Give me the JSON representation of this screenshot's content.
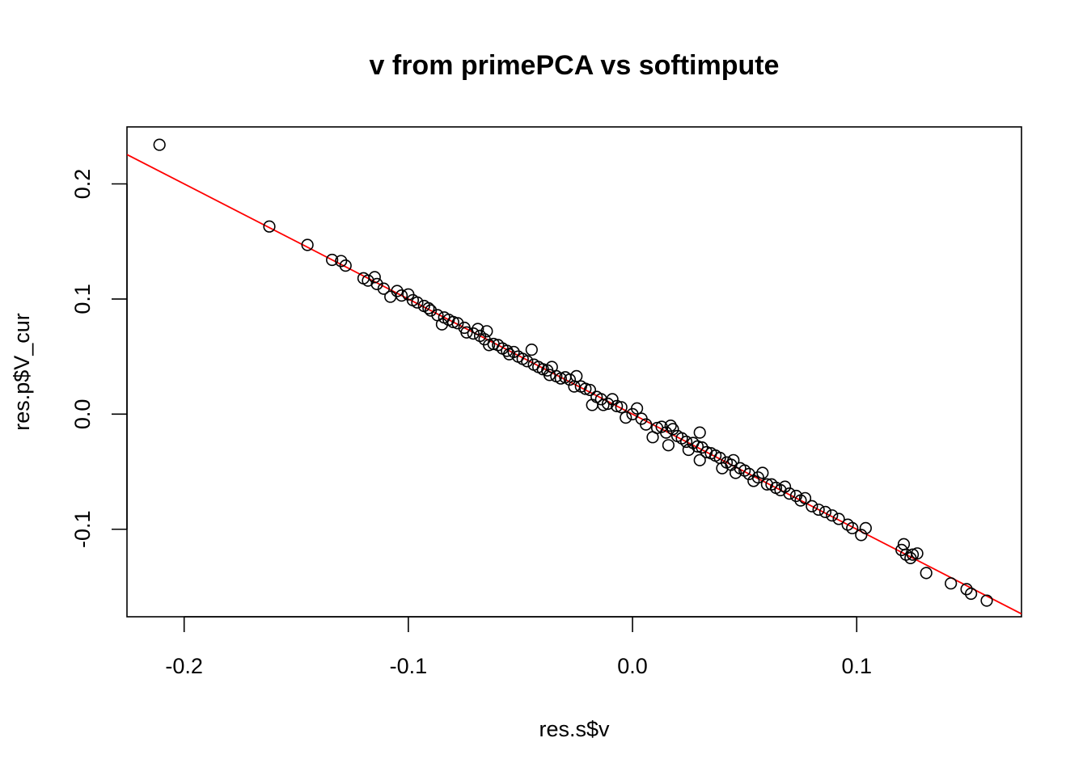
{
  "chart_data": {
    "type": "scatter",
    "title": "v from primePCA vs softimpute",
    "xlabel": "res.s$v",
    "ylabel": "res.p$V_cur",
    "xlim": [
      -0.2255,
      0.1735
    ],
    "ylim": [
      -0.176,
      0.2495
    ],
    "xticks": [
      -0.2,
      -0.1,
      0.0,
      0.1
    ],
    "xtick_labels": [
      "-0.2",
      "-0.1",
      "0.0",
      "0.1"
    ],
    "yticks": [
      -0.1,
      0.0,
      0.1,
      0.2
    ],
    "ytick_labels": [
      "-0.1",
      "0.0",
      "0.1",
      "0.2"
    ],
    "grid": false,
    "reference_line": {
      "intercept": 0.0,
      "slope": -1.0,
      "color": "#ff0000"
    },
    "point_color": "#000000",
    "points": [
      [
        -0.211,
        0.234
      ],
      [
        -0.162,
        0.163
      ],
      [
        -0.145,
        0.147
      ],
      [
        -0.134,
        0.134
      ],
      [
        -0.13,
        0.133
      ],
      [
        -0.128,
        0.129
      ],
      [
        -0.12,
        0.118
      ],
      [
        -0.118,
        0.116
      ],
      [
        -0.115,
        0.119
      ],
      [
        -0.114,
        0.113
      ],
      [
        -0.111,
        0.109
      ],
      [
        -0.108,
        0.102
      ],
      [
        -0.105,
        0.107
      ],
      [
        -0.103,
        0.103
      ],
      [
        -0.1,
        0.104
      ],
      [
        -0.098,
        0.099
      ],
      [
        -0.096,
        0.097
      ],
      [
        -0.093,
        0.094
      ],
      [
        -0.091,
        0.092
      ],
      [
        -0.09,
        0.09
      ],
      [
        -0.087,
        0.086
      ],
      [
        -0.085,
        0.078
      ],
      [
        -0.084,
        0.084
      ],
      [
        -0.082,
        0.082
      ],
      [
        -0.08,
        0.08
      ],
      [
        -0.078,
        0.079
      ],
      [
        -0.075,
        0.075
      ],
      [
        -0.074,
        0.071
      ],
      [
        -0.071,
        0.07
      ],
      [
        -0.069,
        0.074
      ],
      [
        -0.068,
        0.068
      ],
      [
        -0.066,
        0.065
      ],
      [
        -0.065,
        0.072
      ],
      [
        -0.064,
        0.06
      ],
      [
        -0.062,
        0.061
      ],
      [
        -0.06,
        0.06
      ],
      [
        -0.058,
        0.057
      ],
      [
        -0.056,
        0.055
      ],
      [
        -0.055,
        0.052
      ],
      [
        -0.053,
        0.054
      ],
      [
        -0.051,
        0.05
      ],
      [
        -0.049,
        0.048
      ],
      [
        -0.047,
        0.046
      ],
      [
        -0.045,
        0.056
      ],
      [
        -0.044,
        0.043
      ],
      [
        -0.042,
        0.041
      ],
      [
        -0.04,
        0.039
      ],
      [
        -0.038,
        0.038
      ],
      [
        -0.037,
        0.034
      ],
      [
        -0.036,
        0.041
      ],
      [
        -0.034,
        0.033
      ],
      [
        -0.032,
        0.031
      ],
      [
        -0.03,
        0.032
      ],
      [
        -0.028,
        0.03
      ],
      [
        -0.026,
        0.024
      ],
      [
        -0.025,
        0.033
      ],
      [
        -0.023,
        0.024
      ],
      [
        -0.021,
        0.022
      ],
      [
        -0.019,
        0.021
      ],
      [
        -0.018,
        0.008
      ],
      [
        -0.016,
        0.015
      ],
      [
        -0.014,
        0.013
      ],
      [
        -0.013,
        0.008
      ],
      [
        -0.011,
        0.009
      ],
      [
        -0.009,
        0.013
      ],
      [
        -0.007,
        0.007
      ],
      [
        -0.005,
        0.006
      ],
      [
        -0.003,
        -0.003
      ],
      [
        0.0,
        0.0
      ],
      [
        0.002,
        0.005
      ],
      [
        0.004,
        -0.004
      ],
      [
        0.006,
        -0.009
      ],
      [
        0.009,
        -0.02
      ],
      [
        0.011,
        -0.012
      ],
      [
        0.013,
        -0.011
      ],
      [
        0.015,
        -0.016
      ],
      [
        0.016,
        -0.027
      ],
      [
        0.017,
        -0.01
      ],
      [
        0.018,
        -0.013
      ],
      [
        0.02,
        -0.019
      ],
      [
        0.022,
        -0.021
      ],
      [
        0.024,
        -0.024
      ],
      [
        0.025,
        -0.031
      ],
      [
        0.027,
        -0.025
      ],
      [
        0.029,
        -0.028
      ],
      [
        0.03,
        -0.04
      ],
      [
        0.03,
        -0.016
      ],
      [
        0.031,
        -0.029
      ],
      [
        0.033,
        -0.033
      ],
      [
        0.035,
        -0.034
      ],
      [
        0.037,
        -0.036
      ],
      [
        0.039,
        -0.038
      ],
      [
        0.04,
        -0.047
      ],
      [
        0.042,
        -0.042
      ],
      [
        0.044,
        -0.044
      ],
      [
        0.045,
        -0.04
      ],
      [
        0.046,
        -0.051
      ],
      [
        0.048,
        -0.047
      ],
      [
        0.05,
        -0.049
      ],
      [
        0.052,
        -0.052
      ],
      [
        0.054,
        -0.058
      ],
      [
        0.056,
        -0.055
      ],
      [
        0.058,
        -0.051
      ],
      [
        0.06,
        -0.061
      ],
      [
        0.062,
        -0.061
      ],
      [
        0.064,
        -0.064
      ],
      [
        0.066,
        -0.066
      ],
      [
        0.068,
        -0.063
      ],
      [
        0.07,
        -0.069
      ],
      [
        0.073,
        -0.071
      ],
      [
        0.075,
        -0.075
      ],
      [
        0.077,
        -0.073
      ],
      [
        0.08,
        -0.08
      ],
      [
        0.083,
        -0.083
      ],
      [
        0.086,
        -0.085
      ],
      [
        0.089,
        -0.088
      ],
      [
        0.092,
        -0.091
      ],
      [
        0.096,
        -0.096
      ],
      [
        0.098,
        -0.099
      ],
      [
        0.102,
        -0.105
      ],
      [
        0.104,
        -0.099
      ],
      [
        0.12,
        -0.118
      ],
      [
        0.121,
        -0.113
      ],
      [
        0.122,
        -0.122
      ],
      [
        0.124,
        -0.125
      ],
      [
        0.125,
        -0.122
      ],
      [
        0.127,
        -0.121
      ],
      [
        0.131,
        -0.138
      ],
      [
        0.142,
        -0.147
      ],
      [
        0.149,
        -0.152
      ],
      [
        0.151,
        -0.156
      ],
      [
        0.158,
        -0.162
      ]
    ]
  }
}
